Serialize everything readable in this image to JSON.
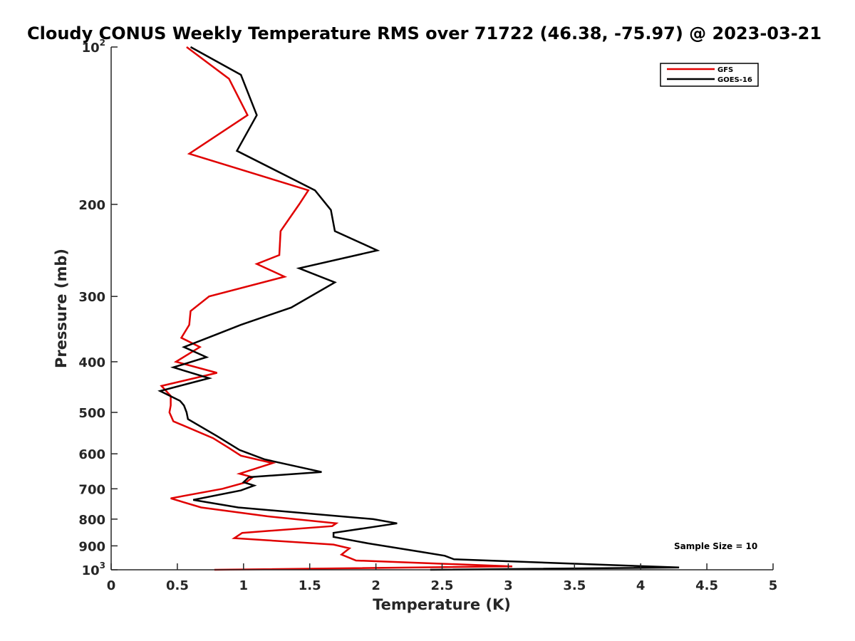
{
  "chart_data": {
    "type": "line",
    "title": "Cloudy CONUS Weekly Temperature RMS over 71722 (46.38, -75.97) @ 2023-03-21",
    "xlabel": "Temperature (K)",
    "ylabel": "Pressure (mb)",
    "xlim": [
      0,
      5
    ],
    "ylim": [
      100,
      1000
    ],
    "y_scale": "log",
    "y_reversed": true,
    "grid": false,
    "legend_position": "top-right",
    "x_ticks": [
      "0",
      "0.5",
      "1",
      "1.5",
      "2",
      "2.5",
      "3",
      "3.5",
      "4",
      "4.5",
      "5"
    ],
    "y_ticks": [
      {
        "value": 100,
        "base": "10",
        "exp": "2"
      },
      {
        "value": 200,
        "label": "200"
      },
      {
        "value": 300,
        "label": "300"
      },
      {
        "value": 400,
        "label": "400"
      },
      {
        "value": 500,
        "label": "500"
      },
      {
        "value": 600,
        "label": "600"
      },
      {
        "value": 700,
        "label": "700"
      },
      {
        "value": 800,
        "label": "800"
      },
      {
        "value": 900,
        "label": "900"
      },
      {
        "value": 1000,
        "base": "10",
        "exp": "3"
      }
    ],
    "annotation": "Sample Size = 10",
    "series": [
      {
        "name": "GFS",
        "color": "#e00000",
        "points": [
          [
            0.57,
            100
          ],
          [
            0.89,
            115
          ],
          [
            1.03,
            135
          ],
          [
            0.59,
            160
          ],
          [
            1.49,
            188
          ],
          [
            1.42,
            200
          ],
          [
            1.28,
            225
          ],
          [
            1.27,
            250
          ],
          [
            1.1,
            260
          ],
          [
            1.31,
            275
          ],
          [
            0.74,
            300
          ],
          [
            0.6,
            320
          ],
          [
            0.59,
            340
          ],
          [
            0.53,
            360
          ],
          [
            0.67,
            375
          ],
          [
            0.49,
            400
          ],
          [
            0.8,
            420
          ],
          [
            0.38,
            445
          ],
          [
            0.45,
            465
          ],
          [
            0.45,
            485
          ],
          [
            0.44,
            500
          ],
          [
            0.47,
            520
          ],
          [
            0.77,
            560
          ],
          [
            0.89,
            585
          ],
          [
            0.98,
            605
          ],
          [
            1.22,
            625
          ],
          [
            0.97,
            655
          ],
          [
            1.07,
            665
          ],
          [
            1.02,
            680
          ],
          [
            0.84,
            700
          ],
          [
            0.45,
            730
          ],
          [
            0.68,
            760
          ],
          [
            1.18,
            790
          ],
          [
            1.7,
            815
          ],
          [
            1.67,
            825
          ],
          [
            0.99,
            850
          ],
          [
            0.93,
            870
          ],
          [
            1.68,
            895
          ],
          [
            1.8,
            910
          ],
          [
            1.74,
            935
          ],
          [
            1.85,
            960
          ],
          [
            3.03,
            985
          ],
          [
            0.78,
            1000
          ]
        ]
      },
      {
        "name": "GOES-16",
        "color": "#000000",
        "points": [
          [
            0.6,
            100
          ],
          [
            0.98,
            113
          ],
          [
            1.1,
            135
          ],
          [
            0.95,
            158
          ],
          [
            1.54,
            188
          ],
          [
            1.66,
            205
          ],
          [
            1.69,
            225
          ],
          [
            2.01,
            245
          ],
          [
            1.42,
            265
          ],
          [
            1.69,
            282
          ],
          [
            1.36,
            315
          ],
          [
            0.98,
            340
          ],
          [
            0.79,
            355
          ],
          [
            0.55,
            375
          ],
          [
            0.72,
            392
          ],
          [
            0.47,
            410
          ],
          [
            0.74,
            430
          ],
          [
            0.37,
            455
          ],
          [
            0.52,
            475
          ],
          [
            0.55,
            485
          ],
          [
            0.57,
            500
          ],
          [
            0.58,
            515
          ],
          [
            0.8,
            555
          ],
          [
            0.97,
            590
          ],
          [
            1.16,
            615
          ],
          [
            1.59,
            650
          ],
          [
            1.04,
            665
          ],
          [
            1.0,
            680
          ],
          [
            1.08,
            690
          ],
          [
            0.98,
            705
          ],
          [
            0.62,
            735
          ],
          [
            0.96,
            760
          ],
          [
            1.98,
            800
          ],
          [
            2.16,
            815
          ],
          [
            1.68,
            850
          ],
          [
            1.68,
            865
          ],
          [
            1.94,
            890
          ],
          [
            2.35,
            925
          ],
          [
            2.52,
            940
          ],
          [
            2.59,
            955
          ],
          [
            4.29,
            990
          ],
          [
            2.41,
            1000
          ]
        ]
      }
    ]
  }
}
